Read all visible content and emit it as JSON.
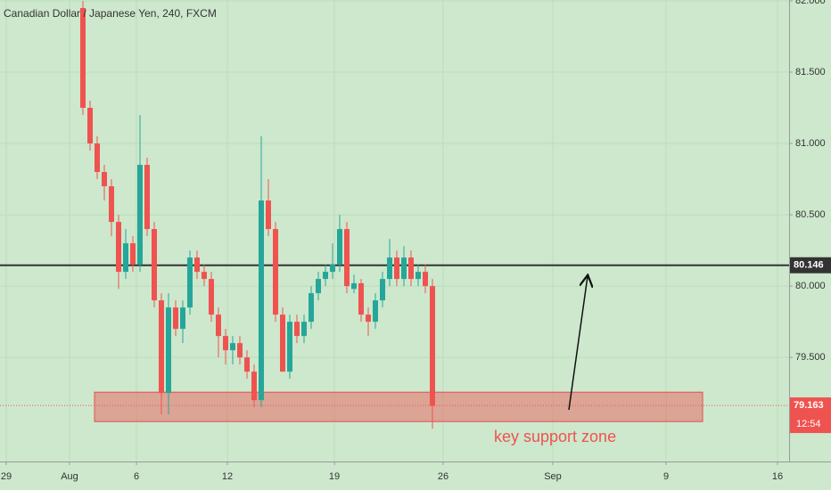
{
  "chart_data": {
    "type": "candlestick",
    "title": "Canadian Dollar / Japanese Yen, 240, FXCM",
    "up_color": "#26a69a",
    "down_color": "#ef5350",
    "open": [
      81.95,
      81.25,
      81.0,
      80.8,
      80.7,
      80.45,
      80.1,
      80.3,
      80.15,
      80.85,
      80.4,
      79.9,
      79.25,
      79.85,
      79.7,
      79.85,
      80.2,
      80.1,
      80.05,
      79.8,
      79.65,
      79.55,
      79.6,
      79.5,
      79.4,
      79.2,
      80.6,
      80.4,
      79.8,
      79.4,
      79.75,
      79.65,
      79.75,
      79.95,
      80.05,
      80.1,
      80.15,
      80.4,
      79.98,
      80.02,
      79.8,
      79.75,
      79.9,
      80.05,
      80.2,
      80.05,
      80.2,
      80.05,
      80.1,
      80.0
    ],
    "high": [
      82.0,
      81.3,
      81.05,
      80.85,
      80.75,
      80.5,
      80.4,
      80.35,
      81.2,
      80.9,
      80.45,
      79.95,
      79.95,
      79.9,
      79.9,
      80.25,
      80.25,
      80.15,
      80.1,
      79.85,
      79.7,
      79.65,
      79.65,
      79.55,
      79.45,
      81.05,
      80.75,
      80.45,
      79.85,
      79.8,
      79.8,
      79.8,
      80.0,
      80.1,
      80.15,
      80.3,
      80.5,
      80.45,
      80.08,
      80.05,
      79.85,
      79.95,
      80.1,
      80.33,
      80.25,
      80.28,
      80.25,
      80.15,
      80.15,
      80.05
    ],
    "low": [
      81.2,
      80.95,
      80.75,
      80.6,
      80.35,
      79.98,
      80.05,
      80.1,
      80.1,
      80.35,
      79.85,
      79.1,
      79.1,
      79.65,
      79.6,
      79.8,
      80.05,
      80.0,
      79.75,
      79.5,
      79.45,
      79.45,
      79.45,
      79.35,
      79.15,
      79.15,
      80.35,
      79.75,
      79.4,
      79.35,
      79.6,
      79.6,
      79.7,
      79.9,
      80.0,
      80.05,
      80.1,
      79.95,
      79.95,
      79.75,
      79.65,
      79.7,
      79.85,
      80.0,
      80.0,
      80.0,
      80.0,
      80.0,
      79.95,
      79.0
    ],
    "close": [
      81.25,
      81.0,
      80.8,
      80.7,
      80.45,
      80.1,
      80.3,
      80.15,
      80.85,
      80.4,
      79.9,
      79.25,
      79.85,
      79.7,
      79.85,
      80.2,
      80.1,
      80.05,
      79.8,
      79.65,
      79.55,
      79.6,
      79.5,
      79.4,
      79.2,
      80.6,
      80.4,
      79.8,
      79.4,
      79.75,
      79.65,
      79.75,
      79.95,
      80.05,
      80.1,
      80.15,
      80.4,
      80.0,
      80.02,
      79.8,
      79.75,
      79.9,
      80.05,
      80.2,
      80.05,
      80.2,
      80.05,
      80.1,
      80.0,
      79.16
    ],
    "ylim": [
      78.77,
      82.006
    ],
    "yticks": [
      {
        "value": 79.5,
        "label": "79.500"
      },
      {
        "value": 80.0,
        "label": "80.000"
      },
      {
        "value": 80.5,
        "label": "80.500"
      },
      {
        "value": 81.0,
        "label": "81.000"
      },
      {
        "value": 81.5,
        "label": "81.500"
      },
      {
        "value": 82.0,
        "label": "82.000"
      }
    ],
    "xlim": [
      -11.625,
      99
    ],
    "xticks": [
      {
        "value": -10.75,
        "label": "29"
      },
      {
        "value": -1.875,
        "label": "Aug"
      },
      {
        "value": 7.5,
        "label": "6"
      },
      {
        "value": 20.25,
        "label": "12"
      },
      {
        "value": 35.25,
        "label": "19"
      },
      {
        "value": 50.5,
        "label": "26"
      },
      {
        "value": 65.875,
        "label": "Sep"
      },
      {
        "value": 81.75,
        "label": "9"
      },
      {
        "value": 97.375,
        "label": "16"
      }
    ],
    "grid": true,
    "level_line": {
      "value": 80.146,
      "label": "80.146"
    },
    "last_price": {
      "value": 79.163,
      "label": "79.163",
      "countdown": "12:54"
    },
    "support_zone": {
      "low": 79.05,
      "high": 79.256,
      "label": "key support zone"
    }
  }
}
